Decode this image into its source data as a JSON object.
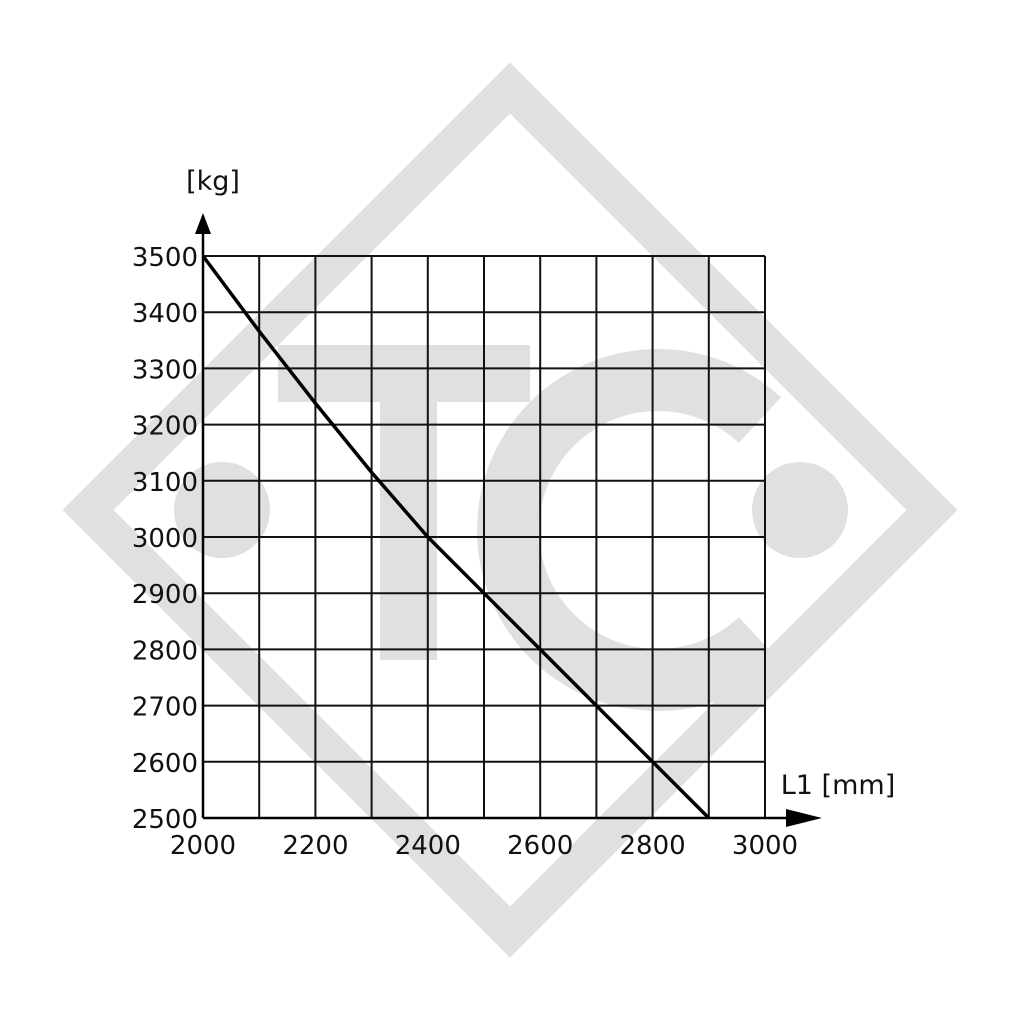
{
  "watermark": {
    "text": "TC",
    "color": "#e0e0e0"
  },
  "chart_data": {
    "type": "line",
    "title": "",
    "xlabel": "L1 [mm]",
    "ylabel": "[kg]",
    "xlim": [
      2000,
      3000
    ],
    "ylim": [
      2500,
      3500
    ],
    "x_ticks": [
      2000,
      2200,
      2400,
      2600,
      2800,
      3000
    ],
    "y_ticks": [
      2500,
      2600,
      2700,
      2800,
      2900,
      3000,
      3100,
      3200,
      3300,
      3400,
      3500
    ],
    "grid": true,
    "grid_step_x": 100,
    "grid_step_y": 100,
    "series": [
      {
        "color": "#000000",
        "points": [
          [
            2000,
            3500
          ],
          [
            2100,
            3366
          ],
          [
            2200,
            3238
          ],
          [
            2300,
            3115
          ],
          [
            2400,
            3000
          ],
          [
            2500,
            2900
          ],
          [
            2600,
            2800
          ],
          [
            2700,
            2700
          ],
          [
            2800,
            2600
          ],
          [
            2900,
            2500
          ]
        ]
      }
    ]
  }
}
